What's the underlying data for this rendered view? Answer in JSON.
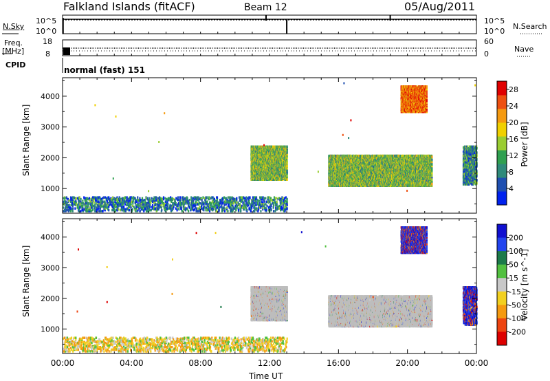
{
  "header": {
    "station": "Falkland Islands (fitACF)",
    "beam": "Beam 12",
    "date": "05/Aug/2011"
  },
  "noise_panel": {
    "left_label": "N.Sky",
    "left_ticks": [
      "10^5",
      "10^0"
    ],
    "right_label": "N.Search",
    "right_ticks": [
      "10^5",
      "10^0"
    ]
  },
  "freq_panel": {
    "left_label_1": "Freq.",
    "left_label_2": "[MHz]",
    "left_ticks": [
      "18",
      "8"
    ],
    "right_label": "Nave",
    "right_ticks": [
      "60",
      "0"
    ]
  },
  "cpid_panel": {
    "label": "CPID",
    "text": "normal (fast) 151"
  },
  "colors": {
    "power_scale": [
      "#0022ee",
      "#1f4fb0",
      "#2f8a7a",
      "#30a050",
      "#9acd32",
      "#f0d000",
      "#f59a10",
      "#ee5010",
      "#e00000"
    ],
    "velocity_scale": [
      "#1010d0",
      "#2244ee",
      "#1c7a4a",
      "#52c040",
      "#c8c8c8",
      "#f2d020",
      "#f59a10",
      "#ee4410",
      "#dd0000"
    ],
    "ground_scatter": "#bdbdbd"
  },
  "chart_data": [
    {
      "type": "heatmap",
      "name": "power",
      "xlabel": "Time UT",
      "ylabel": "Slant Range [km]",
      "xlim": [
        0,
        24
      ],
      "ylim": [
        200,
        4600
      ],
      "xticks": [
        "00:00",
        "04:00",
        "08:00",
        "12:00",
        "16:00",
        "20:00",
        "00:00"
      ],
      "yticks": [
        1000,
        2000,
        3000,
        4000
      ],
      "colorbar": {
        "label": "Power [dB]",
        "ticks": [
          4,
          8,
          12,
          16,
          20,
          24,
          28
        ],
        "range": [
          0,
          30
        ]
      },
      "regions": [
        {
          "t": [
            10.9,
            13.0
          ],
          "r": [
            1250,
            2350
          ],
          "level": 0.45
        },
        {
          "t": [
            15.4,
            21.4
          ],
          "r": [
            1050,
            2050
          ],
          "level": 0.45
        },
        {
          "t": [
            19.6,
            21.1
          ],
          "r": [
            3450,
            4300
          ],
          "level": 0.8
        },
        {
          "t": [
            0.0,
            13.0
          ],
          "r": [
            230,
            700
          ],
          "level": 0.25
        },
        {
          "t": [
            23.2,
            24.0
          ],
          "r": [
            1100,
            2350
          ],
          "level": 0.3
        }
      ]
    },
    {
      "type": "heatmap",
      "name": "velocity",
      "xlabel": "Time UT",
      "ylabel": "Slant Range [km]",
      "xlim": [
        0,
        24
      ],
      "ylim": [
        200,
        4600
      ],
      "xticks": [
        "00:00",
        "04:00",
        "08:00",
        "12:00",
        "16:00",
        "20:00",
        "00:00"
      ],
      "yticks": [
        1000,
        2000,
        3000,
        4000
      ],
      "colorbar": {
        "label": "Velocity [m s^-1]",
        "ticks": [
          200,
          100,
          50,
          15,
          -15,
          -50,
          -100,
          -200
        ]
      },
      "regions": [
        {
          "t": [
            10.9,
            13.0
          ],
          "r": [
            1250,
            2350
          ],
          "value": "ground scatter"
        },
        {
          "t": [
            15.4,
            21.4
          ],
          "r": [
            1050,
            2050
          ],
          "value": "ground scatter"
        },
        {
          "t": [
            19.6,
            21.1
          ],
          "r": [
            3450,
            4300
          ],
          "value": 200
        },
        {
          "t": [
            0.0,
            13.0
          ],
          "r": [
            230,
            700
          ],
          "value": -50
        },
        {
          "t": [
            23.2,
            24.0
          ],
          "r": [
            1100,
            2350
          ],
          "value": 150
        }
      ]
    }
  ]
}
